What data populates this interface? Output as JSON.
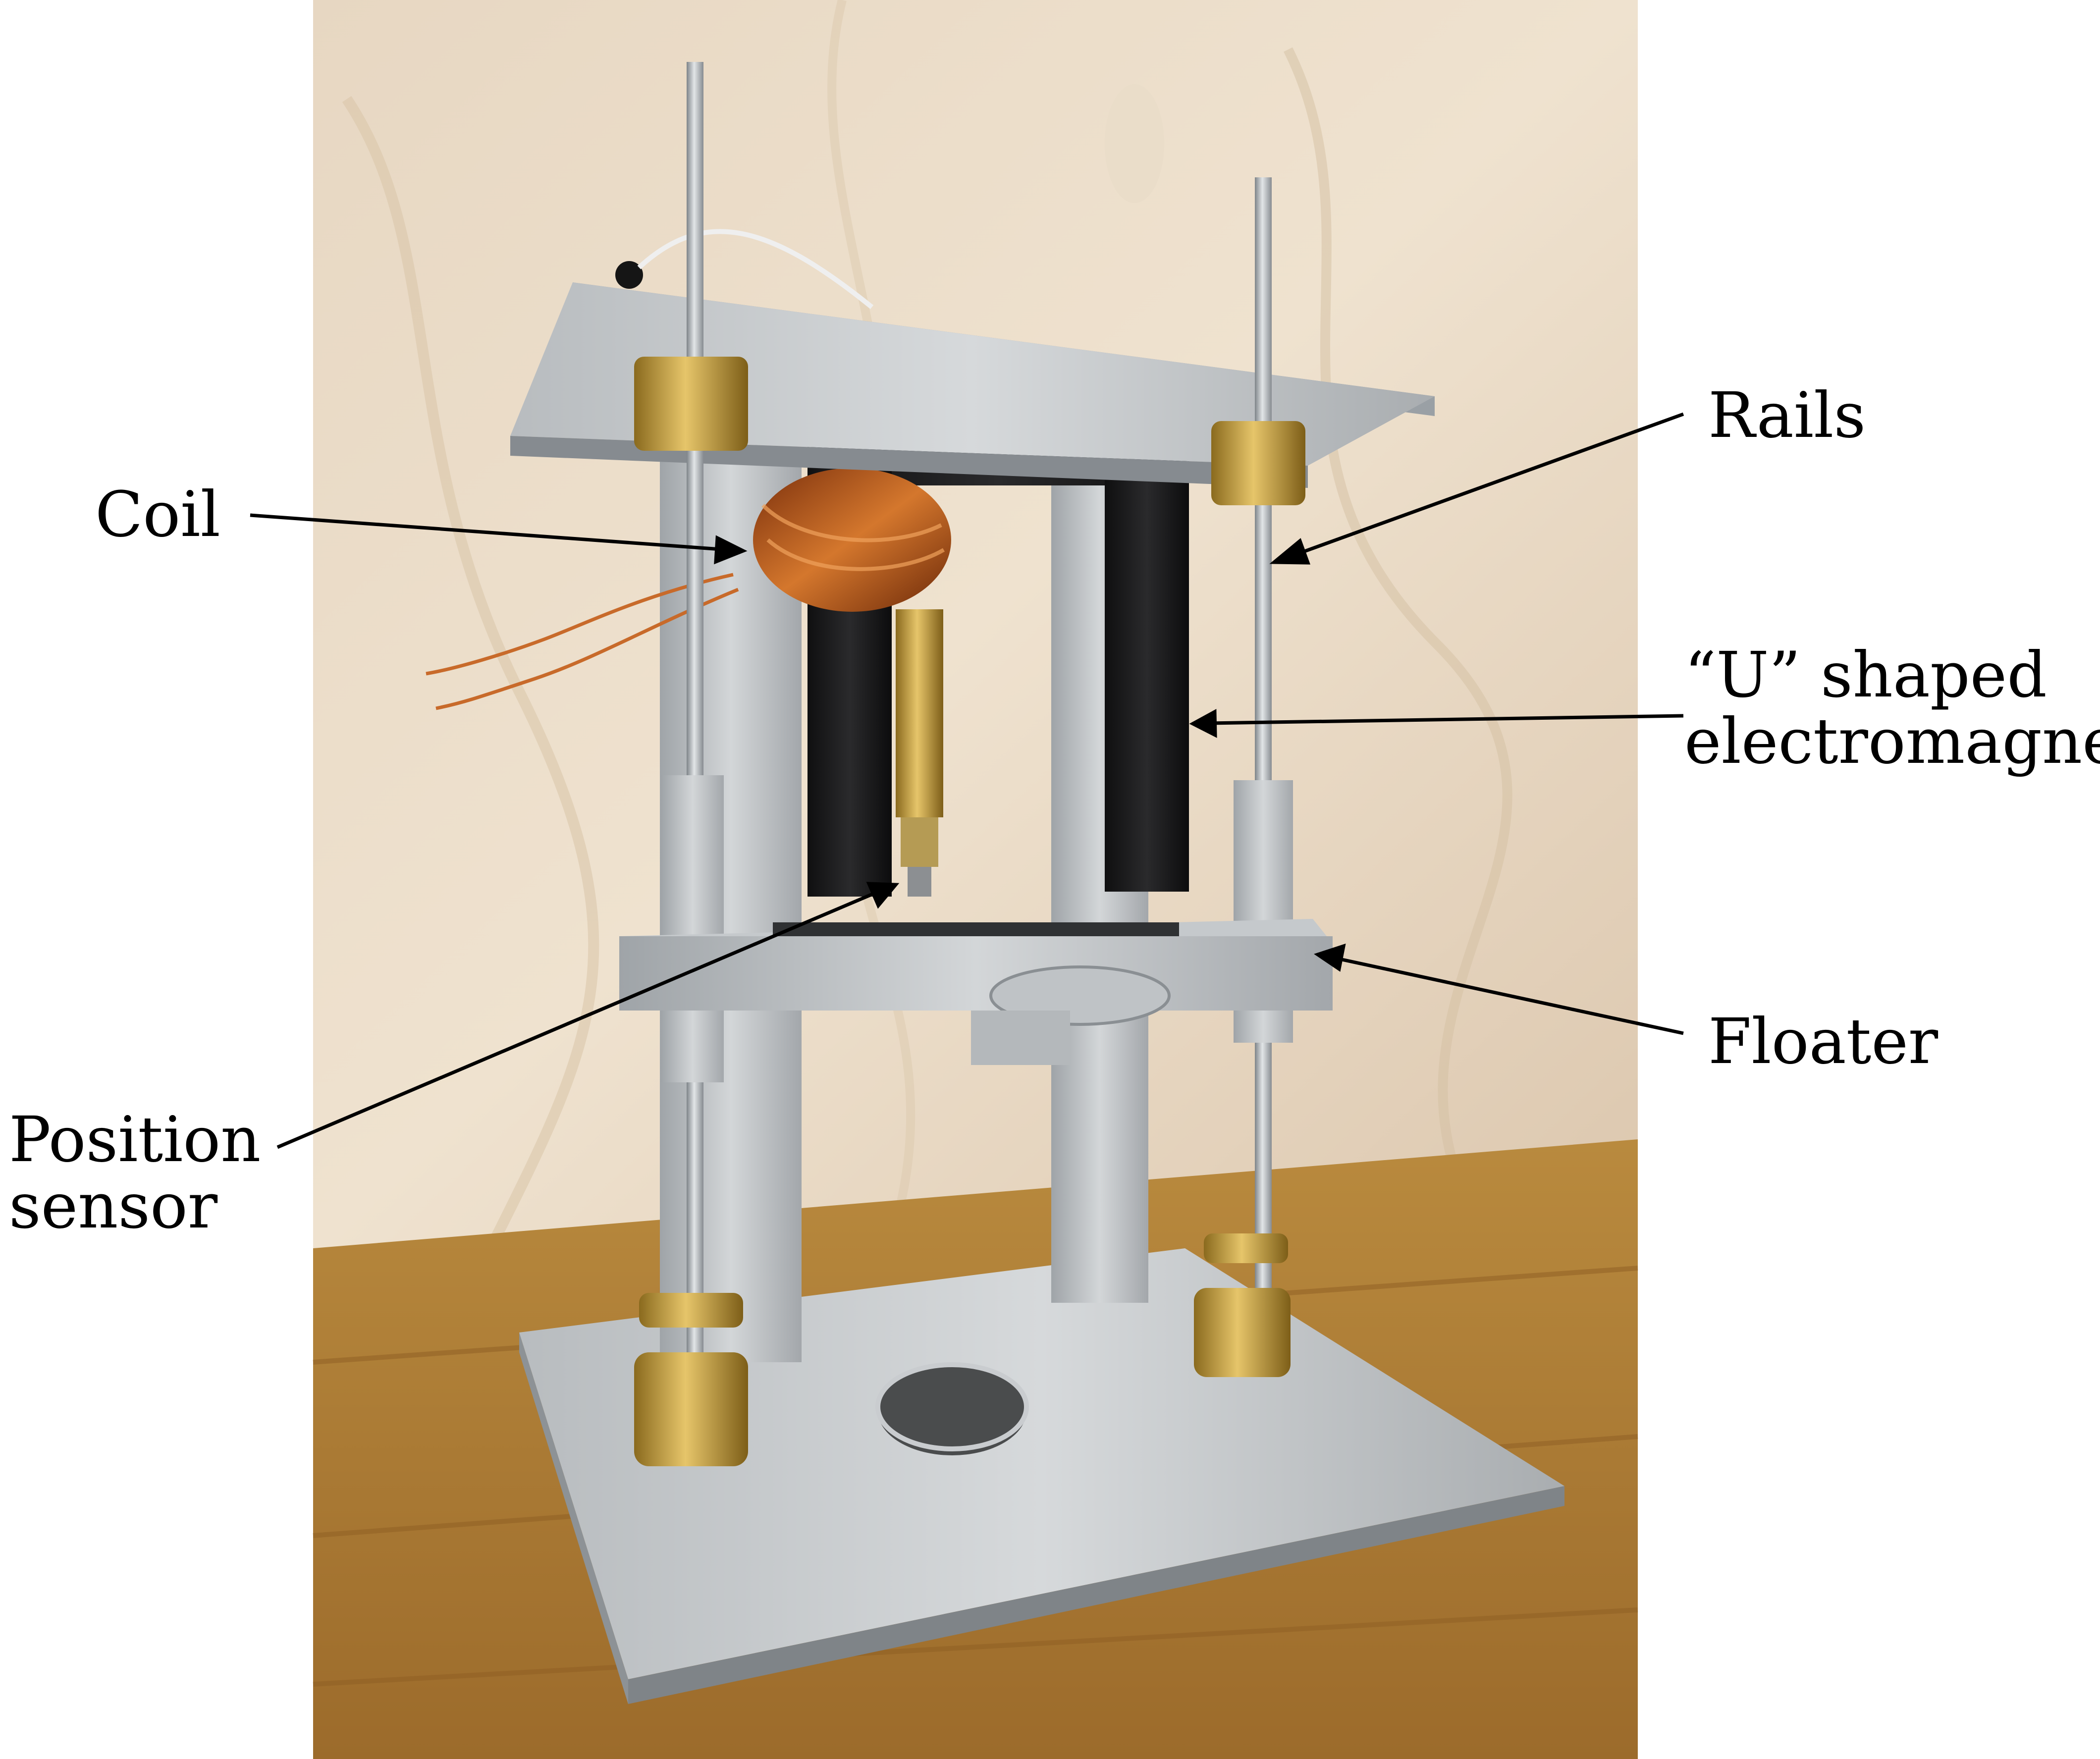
{
  "figure": {
    "labels": {
      "rails": "Rails",
      "coil": "Coil",
      "u_magnet_line1": "“U” shaped",
      "u_magnet_line2": "electromagnet",
      "floater": "Floater",
      "position_line1": "Position",
      "position_line2": "sensor"
    }
  }
}
